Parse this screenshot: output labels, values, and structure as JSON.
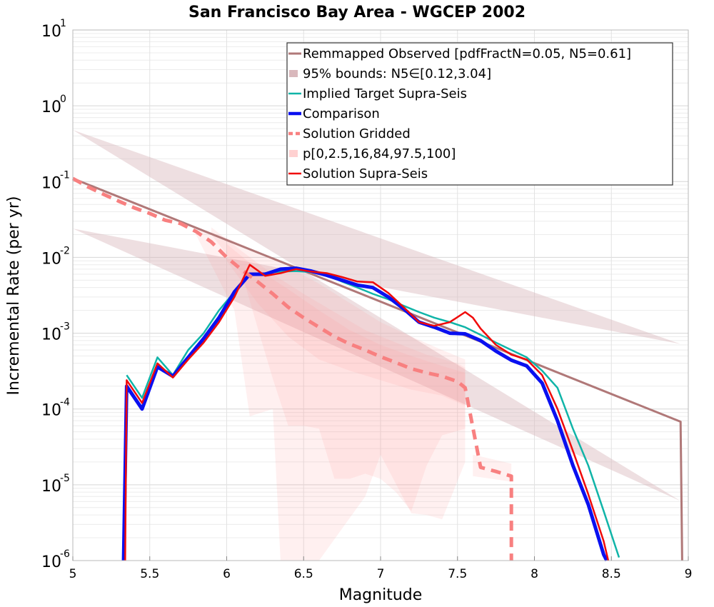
{
  "chart_data": {
    "type": "line",
    "title": "San Francisco Bay Area - WGCEP 2002",
    "xlabel": "Magnitude",
    "ylabel": "Incremental Rate (per yr)",
    "xlim": [
      5,
      9
    ],
    "ylim": [
      1e-06,
      10
    ],
    "yscale": "log",
    "grid": true,
    "legend_position": "top-right",
    "x_ticks": [
      "5",
      "5.5",
      "6",
      "6.5",
      "7",
      "7.5",
      "8",
      "8.5",
      "9"
    ],
    "y_ticks": [
      {
        "base": "10",
        "exp": "-6"
      },
      {
        "base": "10",
        "exp": "-5"
      },
      {
        "base": "10",
        "exp": "-4"
      },
      {
        "base": "10",
        "exp": "-3"
      },
      {
        "base": "10",
        "exp": "-2"
      },
      {
        "base": "10",
        "exp": "-1"
      },
      {
        "base": "10",
        "exp": "0"
      },
      {
        "base": "10",
        "exp": "1"
      }
    ],
    "series": [
      {
        "name": "Remmapped Observed [pdfFractN=0.05, N5=0.61]",
        "kind": "line",
        "color": "#b07878",
        "width": 3,
        "points": [
          [
            5.0,
            0.11
          ],
          [
            8.95,
            6.8e-05
          ],
          [
            8.96,
            1e-06
          ]
        ]
      },
      {
        "name": "95% bounds: N5∈[0.12,3.04]",
        "kind": "band",
        "color": "#d9b8bc",
        "opacity": 0.45,
        "upper": [
          [
            5.0,
            0.48
          ],
          [
            8.95,
            0.00072
          ]
        ],
        "lower": [
          [
            5.0,
            0.024
          ],
          [
            8.95,
            6.1e-06
          ]
        ]
      },
      {
        "name": "Implied Target Supra-Seis",
        "kind": "line",
        "color": "#10b4a8",
        "width": 2.5,
        "points": [
          [
            5.35,
            0.00028
          ],
          [
            5.45,
            0.00014
          ],
          [
            5.55,
            0.00048
          ],
          [
            5.65,
            0.00028
          ],
          [
            5.75,
            0.0006
          ],
          [
            5.85,
            0.001
          ],
          [
            5.95,
            0.002
          ],
          [
            6.05,
            0.0035
          ],
          [
            6.15,
            0.0058
          ],
          [
            6.25,
            0.0062
          ],
          [
            6.35,
            0.0065
          ],
          [
            6.45,
            0.0066
          ],
          [
            6.55,
            0.0064
          ],
          [
            6.65,
            0.0058
          ],
          [
            6.75,
            0.0048
          ],
          [
            6.85,
            0.004
          ],
          [
            6.95,
            0.0033
          ],
          [
            7.05,
            0.0028
          ],
          [
            7.15,
            0.0023
          ],
          [
            7.25,
            0.0019
          ],
          [
            7.35,
            0.0016
          ],
          [
            7.45,
            0.0014
          ],
          [
            7.55,
            0.0012
          ],
          [
            7.65,
            0.00095
          ],
          [
            7.75,
            0.00075
          ],
          [
            7.85,
            0.0006
          ],
          [
            7.95,
            0.00048
          ],
          [
            8.05,
            0.00032
          ],
          [
            8.15,
            0.00019
          ],
          [
            8.25,
            5.5e-05
          ],
          [
            8.35,
            1.8e-05
          ],
          [
            8.45,
            4.5e-06
          ],
          [
            8.55,
            1.1e-06
          ]
        ]
      },
      {
        "name": "Comparison",
        "kind": "line",
        "color": "#0a10f0",
        "width": 5,
        "points": [
          [
            5.33,
            1e-06
          ],
          [
            5.35,
            0.0002
          ],
          [
            5.45,
            0.0001
          ],
          [
            5.55,
            0.00036
          ],
          [
            5.65,
            0.00027
          ],
          [
            5.75,
            0.00048
          ],
          [
            5.85,
            0.00085
          ],
          [
            5.95,
            0.0016
          ],
          [
            6.05,
            0.0035
          ],
          [
            6.15,
            0.006
          ],
          [
            6.25,
            0.006
          ],
          [
            6.35,
            0.007
          ],
          [
            6.45,
            0.0072
          ],
          [
            6.55,
            0.0066
          ],
          [
            6.65,
            0.0058
          ],
          [
            6.75,
            0.005
          ],
          [
            6.85,
            0.0043
          ],
          [
            6.95,
            0.004
          ],
          [
            7.05,
            0.003
          ],
          [
            7.15,
            0.0021
          ],
          [
            7.25,
            0.0014
          ],
          [
            7.35,
            0.0012
          ],
          [
            7.45,
            0.001
          ],
          [
            7.55,
            0.00098
          ],
          [
            7.65,
            0.0008
          ],
          [
            7.75,
            0.00058
          ],
          [
            7.85,
            0.00044
          ],
          [
            7.95,
            0.00037
          ],
          [
            8.05,
            0.00022
          ],
          [
            8.15,
            7e-05
          ],
          [
            8.25,
            1.8e-05
          ],
          [
            8.35,
            5.5e-06
          ],
          [
            8.45,
            1.2e-06
          ],
          [
            8.47,
            1e-06
          ]
        ]
      },
      {
        "name": "Solution Gridded",
        "kind": "line",
        "color": "#f88080",
        "width": 5,
        "dash": "14,9",
        "points": [
          [
            5.0,
            0.11
          ],
          [
            5.1,
            0.085
          ],
          [
            5.2,
            0.068
          ],
          [
            5.3,
            0.055
          ],
          [
            5.4,
            0.045
          ],
          [
            5.5,
            0.038
          ],
          [
            5.6,
            0.031
          ],
          [
            5.7,
            0.028
          ],
          [
            5.8,
            0.022
          ],
          [
            5.9,
            0.016
          ],
          [
            6.0,
            0.01
          ],
          [
            6.1,
            0.0068
          ],
          [
            6.2,
            0.0048
          ],
          [
            6.3,
            0.0033
          ],
          [
            6.4,
            0.0022
          ],
          [
            6.5,
            0.0016
          ],
          [
            6.6,
            0.0012
          ],
          [
            6.7,
            0.0009
          ],
          [
            6.8,
            0.00072
          ],
          [
            6.9,
            0.0006
          ],
          [
            7.0,
            0.00049
          ],
          [
            7.1,
            0.00041
          ],
          [
            7.2,
            0.00034
          ],
          [
            7.3,
            0.0003
          ],
          [
            7.4,
            0.00027
          ],
          [
            7.5,
            0.00023
          ],
          [
            7.55,
            0.00019
          ],
          [
            7.65,
            1.7e-05
          ],
          [
            7.75,
            1.5e-05
          ],
          [
            7.85,
            1.3e-05
          ],
          [
            7.85,
            1e-06
          ]
        ]
      },
      {
        "name": "p[0,2.5,16,84,97.5,100]",
        "kind": "band",
        "color": "#ff9a9a",
        "opacity": 0.15,
        "bands": [
          {
            "upper": [
              [
                5.8,
                0.025
              ],
              [
                6.0,
                0.018
              ],
              [
                6.2,
                0.012
              ],
              [
                6.4,
                0.0075
              ],
              [
                6.6,
                0.0045
              ],
              [
                6.8,
                0.0025
              ],
              [
                7.0,
                0.0014
              ],
              [
                7.2,
                0.0009
              ],
              [
                7.4,
                0.0006
              ],
              [
                7.55,
                0.00045
              ]
            ],
            "lower": [
              [
                7.55,
                2e-05
              ],
              [
                7.4,
                3.5e-06
              ],
              [
                7.3,
                4e-06
              ],
              [
                7.2,
                4.2e-06
              ],
              [
                7.0,
                2.5e-05
              ],
              [
                6.9,
                7e-06
              ],
              [
                6.6,
                1e-06
              ],
              [
                6.35,
                1e-06
              ],
              [
                6.3,
                0.0001
              ],
              [
                6.15,
                8e-05
              ],
              [
                6.05,
                0.002
              ],
              [
                5.8,
                0.02
              ]
            ]
          },
          {
            "upper": [
              [
                5.9,
                0.025
              ],
              [
                6.1,
                0.012
              ],
              [
                6.3,
                0.006
              ],
              [
                6.5,
                0.0033
              ],
              [
                6.7,
                0.0019
              ],
              [
                6.9,
                0.0011
              ],
              [
                7.1,
                0.00075
              ],
              [
                7.3,
                0.00052
              ],
              [
                7.5,
                0.0004
              ],
              [
                7.55,
                0.00035
              ]
            ],
            "lower": [
              [
                7.55,
                5.5e-05
              ],
              [
                7.4,
                4.5e-05
              ],
              [
                7.3,
                1.8e-05
              ],
              [
                7.2,
                4.5e-06
              ],
              [
                7.1,
                8e-06
              ],
              [
                7.0,
                1.2e-05
              ],
              [
                6.9,
                1.4e-05
              ],
              [
                6.8,
                1.2e-05
              ],
              [
                6.7,
                1.2e-05
              ],
              [
                6.6,
                5.5e-05
              ],
              [
                6.5,
                6e-05
              ],
              [
                6.4,
                6e-05
              ],
              [
                6.3,
                0.00025
              ],
              [
                6.2,
                0.0012
              ],
              [
                6.1,
                0.006
              ],
              [
                5.9,
                0.02
              ]
            ]
          },
          {
            "upper": [
              [
                6.0,
                0.015
              ],
              [
                6.2,
                0.007
              ],
              [
                6.4,
                0.0038
              ],
              [
                6.6,
                0.002
              ],
              [
                6.8,
                0.0011
              ],
              [
                7.0,
                0.0007
              ],
              [
                7.2,
                0.0005
              ],
              [
                7.4,
                0.00037
              ],
              [
                7.55,
                0.0003
              ]
            ],
            "lower": [
              [
                7.55,
                0.00011
              ],
              [
                7.4,
                0.00015
              ],
              [
                7.2,
                0.00018
              ],
              [
                7.0,
                0.00024
              ],
              [
                6.8,
                0.00032
              ],
              [
                6.6,
                0.00045
              ],
              [
                6.4,
                0.0009
              ],
              [
                6.2,
                0.0025
              ],
              [
                6.0,
                0.009
              ]
            ]
          },
          {
            "upper": [
              [
                7.6,
                2.5e-05
              ],
              [
                7.85,
                1.9e-05
              ]
            ],
            "lower": [
              [
                7.85,
                1.1e-05
              ],
              [
                7.6,
                1.3e-05
              ]
            ]
          }
        ]
      },
      {
        "name": "Solution Supra-Seis",
        "kind": "line",
        "color": "#f00a0a",
        "width": 2.5,
        "points": [
          [
            5.34,
            1e-06
          ],
          [
            5.35,
            0.00024
          ],
          [
            5.45,
            0.00012
          ],
          [
            5.55,
            0.0004
          ],
          [
            5.65,
            0.00026
          ],
          [
            5.75,
            0.00045
          ],
          [
            5.85,
            0.00075
          ],
          [
            5.95,
            0.0014
          ],
          [
            6.05,
            0.003
          ],
          [
            6.15,
            0.008
          ],
          [
            6.25,
            0.0057
          ],
          [
            6.35,
            0.0062
          ],
          [
            6.45,
            0.007
          ],
          [
            6.55,
            0.0065
          ],
          [
            6.65,
            0.0062
          ],
          [
            6.75,
            0.0055
          ],
          [
            6.85,
            0.0048
          ],
          [
            6.95,
            0.0047
          ],
          [
            7.05,
            0.0034
          ],
          [
            7.15,
            0.0022
          ],
          [
            7.25,
            0.0014
          ],
          [
            7.35,
            0.00125
          ],
          [
            7.45,
            0.0014
          ],
          [
            7.55,
            0.0019
          ],
          [
            7.6,
            0.0016
          ],
          [
            7.65,
            0.00115
          ],
          [
            7.75,
            0.0007
          ],
          [
            7.85,
            0.00052
          ],
          [
            7.95,
            0.00045
          ],
          [
            8.05,
            0.00028
          ],
          [
            8.15,
            0.0001
          ],
          [
            8.25,
            2.8e-05
          ],
          [
            8.35,
            7.5e-06
          ],
          [
            8.45,
            1.8e-06
          ],
          [
            8.48,
            1e-06
          ]
        ]
      }
    ]
  }
}
